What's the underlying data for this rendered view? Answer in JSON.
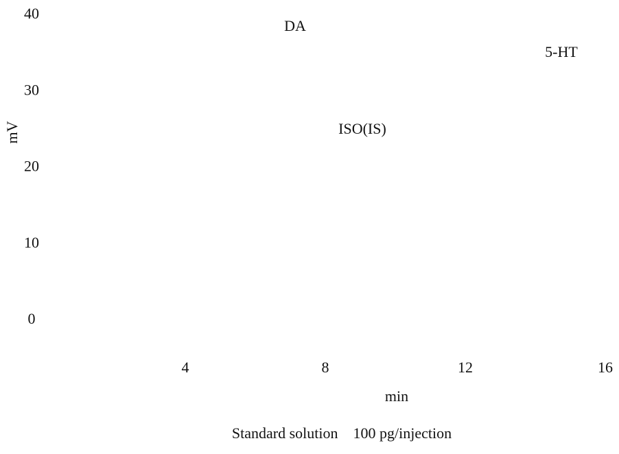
{
  "chart_data": {
    "type": "line",
    "caption": "Standard solution    100 pg/injection",
    "xlabel": "min",
    "ylabel": "mV",
    "annotations": [
      "DA",
      "5-HT",
      "ISO(IS)"
    ],
    "xlim": [
      0,
      16
    ],
    "xticks": [
      4,
      8,
      12,
      16
    ],
    "ylim": [
      0,
      40
    ],
    "yticks": [
      0,
      10,
      20,
      30,
      40
    ],
    "series": []
  }
}
